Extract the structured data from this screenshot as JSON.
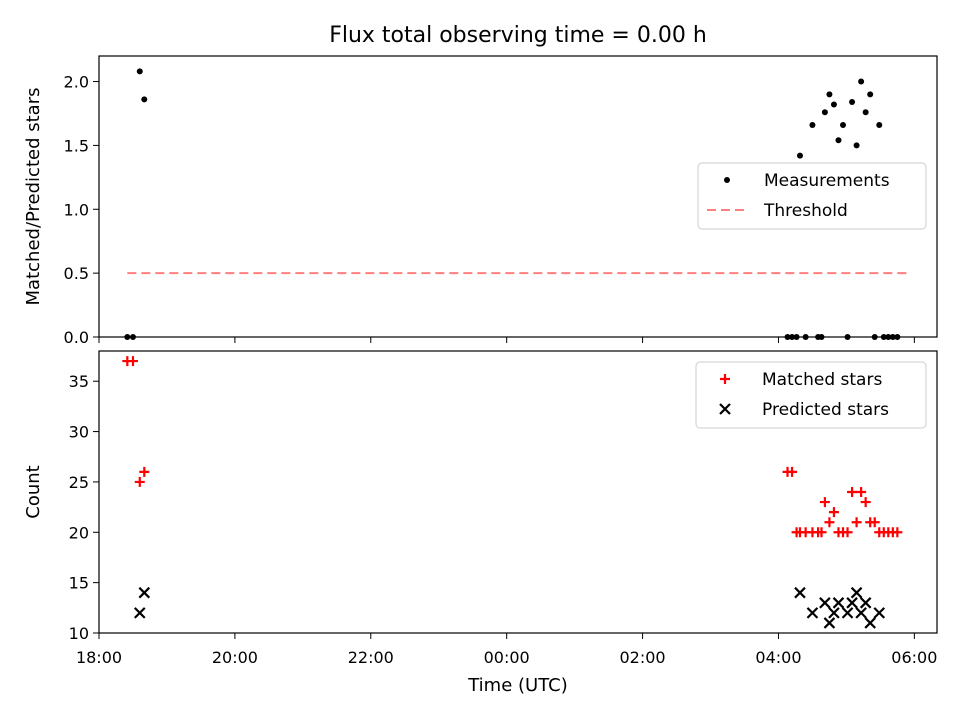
{
  "figure": {
    "title": "Flux total observing time = 0.00 h",
    "xlabel": "Time (UTC)"
  },
  "chart_data": [
    {
      "type": "scatter",
      "ylabel": "Matched/Predicted stars",
      "xlim": [
        "18:00",
        "06:20"
      ],
      "ylim": [
        0,
        2.2
      ],
      "x_ticks": [
        "18:00",
        "20:00",
        "22:00",
        "00:00",
        "02:00",
        "04:00",
        "06:00"
      ],
      "y_ticks": [
        "0.0",
        "0.5",
        "1.0",
        "1.5",
        "2.0"
      ],
      "grid": false,
      "legend_position": "center-right",
      "series": [
        {
          "name": "Measurements",
          "marker": "dot",
          "color": "#000000",
          "points": [
            [
              "18:25",
              0.0
            ],
            [
              "18:30",
              0.0
            ],
            [
              "18:36",
              2.08
            ],
            [
              "18:40",
              1.86
            ],
            [
              "04:08",
              0.0
            ],
            [
              "04:12",
              0.0
            ],
            [
              "04:16",
              0.0
            ],
            [
              "04:19",
              1.42
            ],
            [
              "04:24",
              0.0
            ],
            [
              "04:30",
              1.66
            ],
            [
              "04:35",
              0.0
            ],
            [
              "04:38",
              0.0
            ],
            [
              "04:41",
              1.76
            ],
            [
              "04:45",
              1.9
            ],
            [
              "04:49",
              1.82
            ],
            [
              "04:53",
              1.54
            ],
            [
              "04:57",
              1.66
            ],
            [
              "05:01",
              0.0
            ],
            [
              "05:05",
              1.84
            ],
            [
              "05:09",
              1.5
            ],
            [
              "05:13",
              2.0
            ],
            [
              "05:17",
              1.76
            ],
            [
              "05:21",
              1.9
            ],
            [
              "05:25",
              0.0
            ],
            [
              "05:29",
              1.66
            ],
            [
              "05:33",
              0.0
            ],
            [
              "05:37",
              0.0
            ],
            [
              "05:41",
              0.0
            ],
            [
              "05:45",
              0.0
            ]
          ]
        },
        {
          "name": "Threshold",
          "type": "line",
          "style": "dashed",
          "color": "#ff7f7f",
          "points": [
            [
              "18:25",
              0.5
            ],
            [
              "05:55",
              0.5
            ]
          ]
        }
      ]
    },
    {
      "type": "scatter",
      "ylabel": "Count",
      "xlim": [
        "18:00",
        "06:20"
      ],
      "ylim": [
        10,
        38
      ],
      "x_ticks": [
        "18:00",
        "20:00",
        "22:00",
        "00:00",
        "02:00",
        "04:00",
        "06:00"
      ],
      "y_ticks": [
        "10",
        "15",
        "20",
        "25",
        "30",
        "35"
      ],
      "grid": false,
      "legend_position": "top-right",
      "series": [
        {
          "name": "Matched stars",
          "marker": "plus",
          "color": "#ff0000",
          "points": [
            [
              "18:25",
              37
            ],
            [
              "18:30",
              37
            ],
            [
              "18:36",
              25
            ],
            [
              "18:40",
              26
            ],
            [
              "04:08",
              26
            ],
            [
              "04:12",
              26
            ],
            [
              "04:16",
              20
            ],
            [
              "04:19",
              20
            ],
            [
              "04:24",
              20
            ],
            [
              "04:30",
              20
            ],
            [
              "04:35",
              20
            ],
            [
              "04:38",
              20
            ],
            [
              "04:41",
              23
            ],
            [
              "04:45",
              21
            ],
            [
              "04:49",
              22
            ],
            [
              "04:53",
              20
            ],
            [
              "04:57",
              20
            ],
            [
              "05:01",
              20
            ],
            [
              "05:05",
              24
            ],
            [
              "05:09",
              21
            ],
            [
              "05:13",
              24
            ],
            [
              "05:17",
              23
            ],
            [
              "05:21",
              21
            ],
            [
              "05:25",
              21
            ],
            [
              "05:29",
              20
            ],
            [
              "05:33",
              20
            ],
            [
              "05:37",
              20
            ],
            [
              "05:41",
              20
            ],
            [
              "05:45",
              20
            ]
          ]
        },
        {
          "name": "Predicted stars",
          "marker": "x",
          "color": "#000000",
          "points": [
            [
              "18:36",
              12
            ],
            [
              "18:40",
              14
            ],
            [
              "04:19",
              14
            ],
            [
              "04:30",
              12
            ],
            [
              "04:41",
              13
            ],
            [
              "04:45",
              11
            ],
            [
              "04:49",
              12
            ],
            [
              "04:53",
              13
            ],
            [
              "05:01",
              12
            ],
            [
              "05:05",
              13
            ],
            [
              "05:09",
              14
            ],
            [
              "05:13",
              12
            ],
            [
              "05:17",
              13
            ],
            [
              "05:21",
              11
            ],
            [
              "05:29",
              12
            ]
          ]
        }
      ]
    }
  ]
}
